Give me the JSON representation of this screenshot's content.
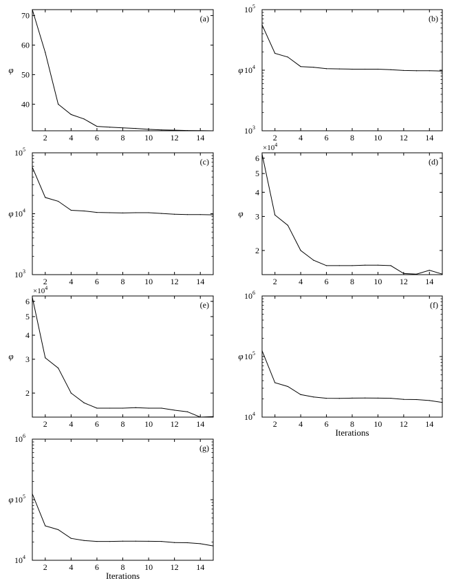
{
  "chart_data": [
    {
      "panel_label": "(a)",
      "type": "line",
      "yscale": "linear",
      "xlim": [
        1,
        15
      ],
      "ylim": [
        31,
        72
      ],
      "x": [
        1,
        2,
        3,
        4,
        5,
        6,
        7,
        8,
        9,
        10,
        11,
        12,
        13,
        14,
        15
      ],
      "y": [
        72,
        57.5,
        40,
        36.5,
        35,
        32.5,
        32.2,
        32,
        31.8,
        31.5,
        31.3,
        31.2,
        31.1,
        31.05,
        31
      ],
      "xticks": [
        2,
        4,
        6,
        8,
        10,
        12,
        14
      ],
      "yticks": [
        {
          "v": 40,
          "label": "40"
        },
        {
          "v": 50,
          "label": "50"
        },
        {
          "v": 60,
          "label": "60"
        },
        {
          "v": 70,
          "label": "70"
        }
      ],
      "ylabel": "φ",
      "xlabel": "",
      "multiplier": "",
      "multiplier_exp": ""
    },
    {
      "panel_label": "(b)",
      "type": "line",
      "yscale": "log",
      "xlim": [
        1,
        15
      ],
      "ylim": [
        1000,
        100000
      ],
      "x": [
        1,
        2,
        3,
        4,
        5,
        6,
        7,
        8,
        9,
        10,
        11,
        12,
        13,
        14,
        15
      ],
      "y": [
        56000,
        19000,
        16500,
        11500,
        11200,
        10600,
        10500,
        10400,
        10400,
        10400,
        10200,
        9900,
        9800,
        9800,
        9700
      ],
      "xticks": [
        2,
        4,
        6,
        8,
        10,
        12,
        14
      ],
      "yticks": [
        {
          "v": 1000,
          "label": "10",
          "exp": "3"
        },
        {
          "v": 10000,
          "label": "10",
          "exp": "4"
        },
        {
          "v": 100000,
          "label": "10",
          "exp": "5"
        }
      ],
      "ylabel": "φ",
      "xlabel": "",
      "multiplier": "",
      "multiplier_exp": ""
    },
    {
      "panel_label": "(c)",
      "type": "line",
      "yscale": "log",
      "xlim": [
        1,
        15
      ],
      "ylim": [
        1000,
        100000
      ],
      "x": [
        1,
        2,
        3,
        4,
        5,
        6,
        7,
        8,
        9,
        10,
        11,
        12,
        13,
        14,
        15
      ],
      "y": [
        58000,
        18500,
        16000,
        11400,
        11100,
        10500,
        10400,
        10300,
        10400,
        10400,
        10100,
        9800,
        9700,
        9700,
        9600
      ],
      "xticks": [
        2,
        4,
        6,
        8,
        10,
        12,
        14
      ],
      "yticks": [
        {
          "v": 1000,
          "label": "10",
          "exp": "3"
        },
        {
          "v": 10000,
          "label": "10",
          "exp": "4"
        },
        {
          "v": 100000,
          "label": "10",
          "exp": "5"
        }
      ],
      "ylabel": "φ",
      "xlabel": "",
      "multiplier": "",
      "multiplier_exp": ""
    },
    {
      "panel_label": "(d)",
      "type": "line",
      "yscale": "log",
      "xlim": [
        1,
        15
      ],
      "ylim": [
        15000,
        64000
      ],
      "x": [
        1,
        2,
        3,
        4,
        5,
        6,
        7,
        8,
        9,
        10,
        11,
        12,
        13,
        14,
        15
      ],
      "y": [
        63000,
        30500,
        27000,
        20000,
        17800,
        16700,
        16700,
        16700,
        16800,
        16800,
        16700,
        15200,
        15100,
        15800,
        15100
      ],
      "xticks": [
        2,
        4,
        6,
        8,
        10,
        12,
        14
      ],
      "yticks": [
        {
          "v": 20000,
          "label": "2"
        },
        {
          "v": 30000,
          "label": "3"
        },
        {
          "v": 40000,
          "label": "4"
        },
        {
          "v": 50000,
          "label": "5"
        },
        {
          "v": 60000,
          "label": "6"
        }
      ],
      "ylabel": "φ",
      "xlabel": "",
      "multiplier": "×10",
      "multiplier_exp": "4"
    },
    {
      "panel_label": "(e)",
      "type": "line",
      "yscale": "log",
      "xlim": [
        1,
        15
      ],
      "ylim": [
        15000,
        64000
      ],
      "x": [
        1,
        2,
        3,
        4,
        5,
        6,
        7,
        8,
        9,
        10,
        11,
        12,
        13,
        14,
        15
      ],
      "y": [
        63000,
        30500,
        27000,
        20000,
        17800,
        16700,
        16700,
        16700,
        16800,
        16700,
        16700,
        16300,
        16000,
        15000,
        15100
      ],
      "xticks": [
        2,
        4,
        6,
        8,
        10,
        12,
        14
      ],
      "yticks": [
        {
          "v": 20000,
          "label": "2"
        },
        {
          "v": 30000,
          "label": "3"
        },
        {
          "v": 40000,
          "label": "4"
        },
        {
          "v": 50000,
          "label": "5"
        },
        {
          "v": 60000,
          "label": "6"
        }
      ],
      "ylabel": "φ",
      "xlabel": "",
      "multiplier": "×10",
      "multiplier_exp": "4"
    },
    {
      "panel_label": "(f)",
      "type": "line",
      "yscale": "log",
      "xlim": [
        1,
        15
      ],
      "ylim": [
        10000,
        1000000
      ],
      "x": [
        1,
        2,
        3,
        4,
        5,
        6,
        7,
        8,
        9,
        10,
        11,
        12,
        13,
        14,
        15
      ],
      "y": [
        125000,
        37000,
        32000,
        23500,
        21500,
        20500,
        20400,
        20600,
        20700,
        20600,
        20500,
        19600,
        19500,
        18800,
        17500
      ],
      "xticks": [
        2,
        4,
        6,
        8,
        10,
        12,
        14
      ],
      "yticks": [
        {
          "v": 10000,
          "label": "10",
          "exp": "4"
        },
        {
          "v": 100000,
          "label": "10",
          "exp": "5"
        },
        {
          "v": 1000000,
          "label": "10",
          "exp": "6"
        }
      ],
      "ylabel": "φ",
      "xlabel": "Iterations",
      "multiplier": "",
      "multiplier_exp": ""
    },
    {
      "panel_label": "(g)",
      "type": "line",
      "yscale": "log",
      "xlim": [
        1,
        15
      ],
      "ylim": [
        10000,
        1000000
      ],
      "x": [
        1,
        2,
        3,
        4,
        5,
        6,
        7,
        8,
        9,
        10,
        11,
        12,
        13,
        14,
        15
      ],
      "y": [
        125000,
        37000,
        32000,
        23000,
        21200,
        20500,
        20500,
        20700,
        20700,
        20600,
        20500,
        19600,
        19500,
        18800,
        17300
      ],
      "xticks": [
        2,
        4,
        6,
        8,
        10,
        12,
        14
      ],
      "yticks": [
        {
          "v": 10000,
          "label": "10",
          "exp": "4"
        },
        {
          "v": 100000,
          "label": "10",
          "exp": "5"
        },
        {
          "v": 1000000,
          "label": "10",
          "exp": "6"
        }
      ],
      "ylabel": "φ",
      "xlabel": "Iterations",
      "multiplier": "",
      "multiplier_exp": ""
    }
  ]
}
